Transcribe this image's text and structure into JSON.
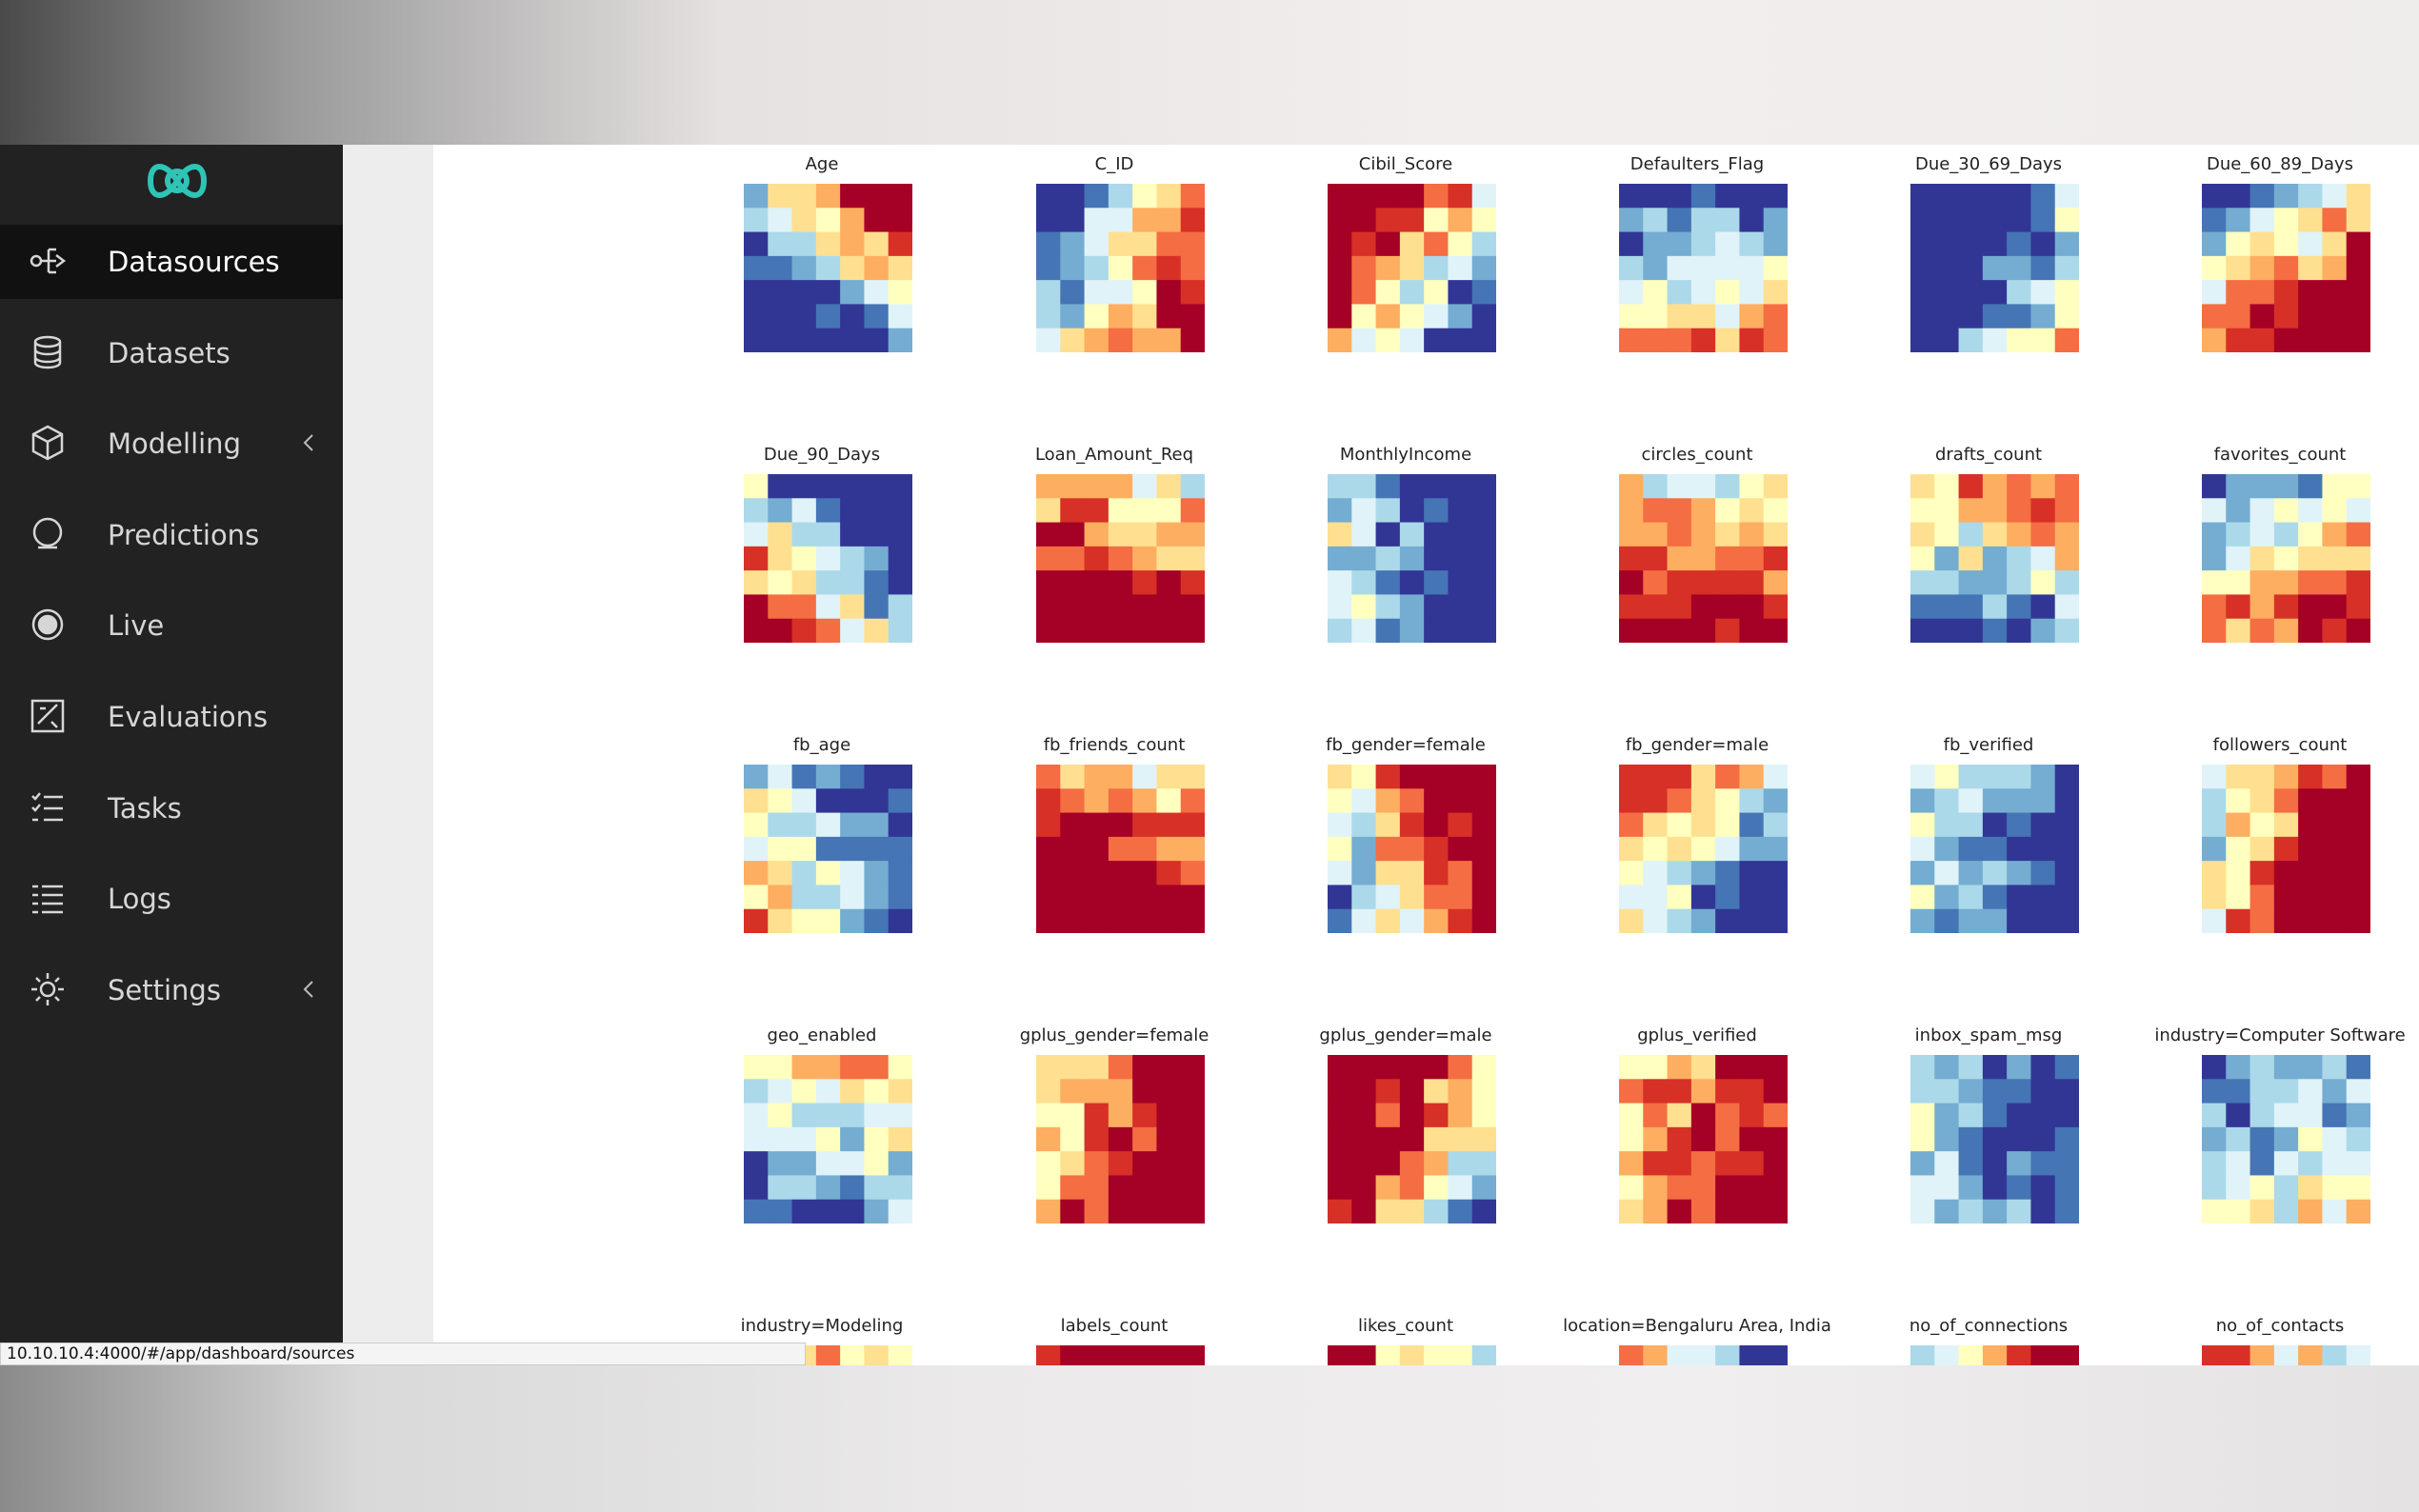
{
  "sidebar": {
    "items": [
      "Datasources",
      "Datasets",
      "Modelling",
      "Predictions",
      "Live",
      "Evaluations",
      "Tasks",
      "Logs",
      "Settings"
    ]
  },
  "heatmaps": {
    "titles": [
      "Age",
      "C_ID",
      "Cibil_Score",
      "Defaulters_Flag",
      "Due_30_69_Days",
      "Due_60_89_Days",
      "Due_90_Days",
      "Loan_Amount_Req",
      "MonthlyIncome",
      "circles_count",
      "drafts_count",
      "favorites_count",
      "fb_age",
      "fb_friends_count",
      "fb_gender=female",
      "fb_gender=male",
      "fb_verified",
      "followers_count",
      "geo_enabled",
      "gplus_gender=female",
      "gplus_gender=male",
      "gplus_verified",
      "inbox_spam_msg",
      "industry=Computer Software",
      "industry=Modeling",
      "labels_count",
      "likes_count",
      "location=Bengaluru Area, India",
      "no_of_connections",
      "no_of_contacts"
    ]
  },
  "status_bar": {
    "url": "10.10.10.4:4000/#/app/dashboard/sources"
  }
}
